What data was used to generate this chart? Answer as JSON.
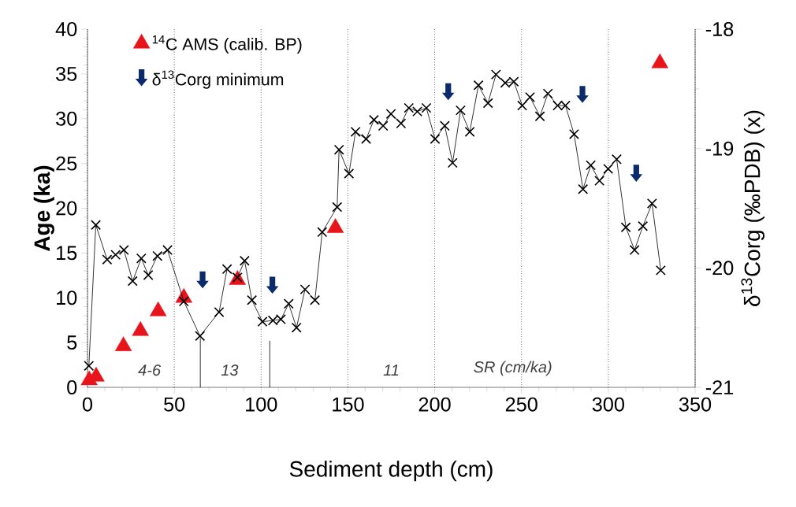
{
  "chart_data": {
    "type": "scatter",
    "xlabel": "Sediment depth (cm)",
    "ylabel": "Age (ka)",
    "y2label": "δ$^{13}$Corg (‰PDB) (x)",
    "xlim": [
      0,
      350
    ],
    "xticks": [
      0,
      50,
      100,
      150,
      200,
      250,
      300,
      350
    ],
    "ylim": [
      0,
      40
    ],
    "yticks": [
      0,
      5,
      10,
      15,
      20,
      25,
      30,
      35,
      40
    ],
    "y2lim": [
      -21,
      -18
    ],
    "y2ticks": [
      -21,
      -20,
      -19,
      -18
    ],
    "grid": "x",
    "legend": "top left",
    "series": [
      {
        "name": "$^{14}$C AMS (calib. BP)",
        "marker": "triangle",
        "color": "#e8141c",
        "x": [
          1,
          5,
          20.7,
          30.5,
          40.7,
          55.5,
          86.4,
          142.8,
          329.7
        ],
        "values": [
          0.8,
          1.2,
          4.6,
          6.3,
          8.5,
          10.0,
          12.0,
          17.8,
          36.2
        ]
      },
      {
        "name": "δ$^{13}$Corg minimum",
        "color": "#0a2a6b",
        "x": [
          66.3,
          106.5,
          207.8,
          285.1,
          316.1
        ],
        "values": [
          11.9,
          11.3,
          32.9,
          32.6,
          23.8
        ]
      },
      {
        "type": "line",
        "marker": "cross",
        "axis": "y2",
        "color": "#000000",
        "x": [
          0.8,
          4.8,
          11.3,
          16.2,
          21,
          26,
          31,
          35,
          40.3,
          46.1,
          55.5,
          64.8,
          75.8,
          80.4,
          86.4,
          90.5,
          94.7,
          100.8,
          106.8,
          111.4,
          115.9,
          120.4,
          125.3,
          131,
          135.2,
          143.8,
          144.9,
          150.6,
          154.4,
          160.5,
          165,
          170.3,
          174.8,
          180.6,
          185.1,
          190,
          195.2,
          200.2,
          205.8,
          210.3,
          214.9,
          220.2,
          225.2,
          230.7,
          235.3,
          240.6,
          245.6,
          250.4,
          254.9,
          260.6,
          265.2,
          270.8,
          275.3,
          280.3,
          285.4,
          289.9,
          294.9,
          299.9,
          304.8,
          310.1,
          315.1,
          319.9,
          325.2,
          330.2
        ],
        "values": [
          -20.82,
          -19.64,
          -19.93,
          -19.89,
          -19.85,
          -20.11,
          -19.92,
          -20.06,
          -19.9,
          -19.85,
          -20.28,
          -20.57,
          -20.37,
          -20.01,
          -20.08,
          -19.94,
          -20.27,
          -20.45,
          -20.44,
          -20.43,
          -20.3,
          -20.5,
          -20.18,
          -20.27,
          -19.7,
          -19.49,
          -19.01,
          -19.21,
          -18.86,
          -18.92,
          -18.76,
          -18.81,
          -18.71,
          -18.79,
          -18.66,
          -18.69,
          -18.66,
          -18.92,
          -18.81,
          -19.12,
          -18.68,
          -18.86,
          -18.47,
          -18.62,
          -18.38,
          -18.45,
          -18.44,
          -18.64,
          -18.57,
          -18.73,
          -18.54,
          -18.64,
          -18.64,
          -18.88,
          -19.34,
          -19.14,
          -19.27,
          -19.17,
          -19.09,
          -19.66,
          -19.85,
          -19.65,
          -19.46,
          -20.02
        ]
      },
      {
        "type": "line",
        "marker": "none",
        "color": "#000000",
        "x": [
          65,
          65
        ],
        "values": [
          0,
          5.5
        ]
      },
      {
        "type": "line",
        "marker": "none",
        "color": "#000000",
        "x": [
          105,
          105
        ],
        "values": [
          0,
          5.2
        ]
      }
    ],
    "annotations": [
      "4-6",
      "13",
      "11",
      "SR (cm/ka)"
    ]
  }
}
